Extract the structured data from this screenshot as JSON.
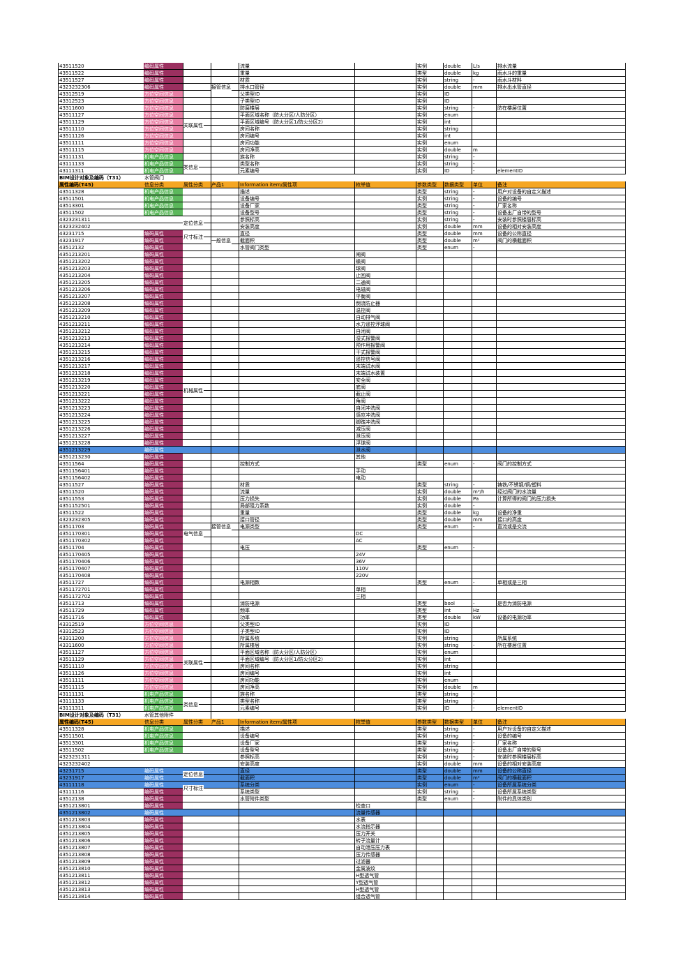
{
  "sections": [
    {
      "rows": [
        {
          "c0": "43511520",
          "t": "mag",
          "c4": "流量",
          "c6": "实例",
          "c7": "double",
          "c8": "L/s",
          "c9": "排水流量"
        },
        {
          "c0": "43511522",
          "t": "mag",
          "c4": "重量",
          "c6": "类型",
          "c7": "double",
          "c8": "kg",
          "c9": "雨水斗的重量"
        },
        {
          "c0": "43511527",
          "t": "mag",
          "c4": "材质",
          "c6": "实例",
          "c7": "string",
          "c8": "-",
          "c9": "雨水斗材料"
        },
        {
          "c0": "4323232306",
          "t": "mag",
          "c4": "排水口管径",
          "c6": "实例",
          "c7": "double",
          "c8": "mm",
          "c9": "排水出水管直径"
        },
        {
          "c0": "43312519",
          "t": "pink",
          "c4": "父类型ID",
          "c6": "实例",
          "c7": "ID",
          "c8": "",
          "c9": ""
        },
        {
          "c0": "43312523",
          "t": "pink",
          "c4": "子类型ID",
          "c6": "实例",
          "c7": "ID",
          "c8": "",
          "c9": ""
        },
        {
          "c0": "43311600",
          "t": "pink",
          "c4": "防腐楼层",
          "c6": "实例",
          "c7": "string",
          "c8": "-",
          "c9": "防在楼层位置"
        },
        {
          "c0": "43511127",
          "t": "pink",
          "c4": "平面区域名称（防火分区/人防分区）",
          "c6": "实例",
          "c7": "enum",
          "c8": "",
          "c9": ""
        },
        {
          "c0": "43511129",
          "t": "pink",
          "c4": "平面区域编号（防火分区1/防火分区2）",
          "c6": "实例",
          "c7": "int",
          "c8": "",
          "c9": ""
        },
        {
          "c0": "43511110",
          "t": "pink",
          "c4": "房间名称",
          "c6": "实例",
          "c7": "string",
          "c8": "",
          "c9": ""
        },
        {
          "c0": "43511126",
          "t": "pink",
          "c4": "房间编号",
          "c6": "实例",
          "c7": "int",
          "c8": "",
          "c9": ""
        },
        {
          "c0": "43511111",
          "t": "pink",
          "c4": "房间功能",
          "c6": "实例",
          "c7": "enum",
          "c8": "",
          "c9": ""
        },
        {
          "c0": "43511115",
          "t": "pink",
          "c4": "房间净高",
          "c6": "实例",
          "c7": "double",
          "c8": "m",
          "c9": ""
        },
        {
          "c0": "43111131",
          "t": "grn",
          "c4": "族名称",
          "c6": "实例",
          "c7": "string",
          "c8": "-",
          "c9": ""
        },
        {
          "c0": "43111133",
          "t": "grn",
          "c4": "类型名称",
          "c6": "实例",
          "c7": "string",
          "c8": "-",
          "c9": ""
        },
        {
          "c0": "43111311",
          "t": "grn",
          "c4": "元素编号",
          "c6": "实例",
          "c7": "ID",
          "c8": "-",
          "c9": "elementID"
        }
      ]
    },
    {
      "title": "BIM设计对象及编码（T31）",
      "subtitle": "水管阀门",
      "rows": [
        {
          "c0": "43511328",
          "t": "grn",
          "c4": "描述",
          "c6": "类型",
          "c7": "string",
          "c8": "-",
          "c9": "用户对设备的自定义描述"
        },
        {
          "c0": "43511501",
          "t": "grn",
          "c4": "设备编号",
          "c6": "实例",
          "c7": "string",
          "c8": "-",
          "c9": "设备的编号"
        },
        {
          "c0": "43513301",
          "t": "grn",
          "c4": "设备厂家",
          "c6": "类型",
          "c7": "string",
          "c8": "-",
          "c9": "厂家名称"
        },
        {
          "c0": "43511502",
          "t": "grn",
          "c4": "设备型号",
          "c6": "类型",
          "c7": "string",
          "c8": "-",
          "c9": "设备出厂自带的型号"
        },
        {
          "c0": "4323231311",
          "t": "",
          "c4": "参照标高",
          "c6": "实例",
          "c7": "string",
          "c8": "-",
          "c9": "安装时参照楼层标高"
        },
        {
          "c0": "4323232402",
          "t": "",
          "c4": "安装高度",
          "c6": "实例",
          "c7": "double",
          "c8": "mm",
          "c9": "设备的相对安装高度"
        },
        {
          "c0": "43231715",
          "t": "mag",
          "c4": "直径",
          "c6": "类型",
          "c7": "double",
          "c8": "mm",
          "c9": "设备的公称直径"
        },
        {
          "c0": "43231917",
          "t": "mag",
          "c4": "截面积",
          "c6": "类型",
          "c7": "double",
          "c8": "m²",
          "c9": "阀门的横截面积"
        },
        {
          "c0": "43512132",
          "t": "mag",
          "c4": "水管阀门类型",
          "c6": "类型",
          "c7": "enum",
          "c8": "-",
          "c9": ""
        },
        {
          "c0": "4351213201",
          "t": "mag",
          "c5": "闸阀"
        },
        {
          "c0": "4351213202",
          "t": "mag",
          "c5": "蝶阀"
        },
        {
          "c0": "4351213203",
          "t": "mag",
          "c5": "球阀"
        },
        {
          "c0": "4351213204",
          "t": "mag",
          "c5": "止回阀"
        },
        {
          "c0": "4351213205",
          "t": "mag",
          "c5": "二通阀"
        },
        {
          "c0": "4351213206",
          "t": "mag",
          "c5": "电磁阀"
        },
        {
          "c0": "4351213207",
          "t": "mag",
          "c5": "平衡阀"
        },
        {
          "c0": "4351213208",
          "t": "mag",
          "c5": "倒流防止器"
        },
        {
          "c0": "4351213209",
          "t": "mag",
          "c5": "温控阀"
        },
        {
          "c0": "4351213210",
          "t": "mag",
          "c5": "自动排气阀"
        },
        {
          "c0": "4351213211",
          "t": "mag",
          "c5": "水力遥控浮球阀"
        },
        {
          "c0": "4351213212",
          "t": "mag",
          "c5": "自闭阀"
        },
        {
          "c0": "4351213213",
          "t": "mag",
          "c5": "湿式报警阀"
        },
        {
          "c0": "4351213214",
          "t": "mag",
          "c5": "预作用报警阀"
        },
        {
          "c0": "4351213215",
          "t": "mag",
          "c5": "干式报警阀"
        },
        {
          "c0": "4351213216",
          "t": "mag",
          "c5": "遥控信号阀"
        },
        {
          "c0": "4351213217",
          "t": "mag",
          "c5": "末端试水阀"
        },
        {
          "c0": "4351213218",
          "t": "mag",
          "c5": "末端试水装置"
        },
        {
          "c0": "4351213219",
          "t": "mag",
          "c5": "安全阀"
        },
        {
          "c0": "4351213220",
          "t": "mag",
          "c5": "底阀"
        },
        {
          "c0": "4351213221",
          "t": "mag",
          "c5": "截止阀"
        },
        {
          "c0": "4351213222",
          "t": "mag",
          "c5": "角阀"
        },
        {
          "c0": "4351213223",
          "t": "mag",
          "c5": "自闭冲洗阀"
        },
        {
          "c0": "4351213224",
          "t": "mag",
          "c5": "感应冲洗阀"
        },
        {
          "c0": "4351213225",
          "t": "mag",
          "c5": "脚踏冲洗阀"
        },
        {
          "c0": "4351213226",
          "t": "mag",
          "c5": "减压阀"
        },
        {
          "c0": "4351213227",
          "t": "mag",
          "c5": "泄压阀"
        },
        {
          "c0": "4351213228",
          "t": "mag",
          "c5": "浮球阀"
        },
        {
          "c0": "4351213229",
          "t": "mag",
          "c5": "泄水阀",
          "hl": true
        },
        {
          "c0": "4351213230",
          "t": "mag",
          "c5": "其他"
        },
        {
          "c0": "43511564",
          "t": "mag",
          "c4": "控制方式",
          "c6": "类型",
          "c7": "enum",
          "c8": "-",
          "c9": "阀门的控制方式"
        },
        {
          "c0": "4351156401",
          "t": "mag",
          "c5": "手动"
        },
        {
          "c0": "4351156402",
          "t": "mag",
          "c5": "电动"
        },
        {
          "c0": "43511527",
          "t": "mag",
          "c4": "材质",
          "c6": "类型",
          "c7": "string",
          "c8": "-",
          "c9": "铸铁/不锈钢/铜/塑料"
        },
        {
          "c0": "43511520",
          "t": "mag",
          "c4": "流量",
          "c6": "实例",
          "c7": "double",
          "c8": "m³/h",
          "c9": "经过阀门的水流量"
        },
        {
          "c0": "43511553",
          "t": "mag",
          "c4": "压力损失",
          "c6": "实例",
          "c7": "double",
          "c8": "Pa",
          "c9": "计算所得的阀门的压力损失"
        },
        {
          "c0": "4351152501",
          "t": "mag",
          "c4": "局部阻力系数",
          "c6": "实例",
          "c7": "double",
          "c8": "-",
          "c9": ""
        },
        {
          "c0": "43511522",
          "t": "mag",
          "c4": "重量",
          "c6": "类型",
          "c7": "double",
          "c8": "kg",
          "c9": "设备的净重"
        },
        {
          "c0": "4323232305",
          "t": "mag",
          "c4": "接口管径",
          "c6": "类型",
          "c7": "double",
          "c8": "mm",
          "c9": "接口的高度"
        },
        {
          "c0": "43511703",
          "t": "mag",
          "c4": "电源类型",
          "c6": "类型",
          "c7": "enum",
          "c8": "-",
          "c9": "直流或是交流"
        },
        {
          "c0": "4351170301",
          "t": "mag",
          "c5": "DC"
        },
        {
          "c0": "4351170302",
          "t": "mag",
          "c5": "AC"
        },
        {
          "c0": "43511704",
          "t": "mag",
          "c4": "电压",
          "c6": "类型",
          "c7": "enum",
          "c8": "-",
          "c9": ""
        },
        {
          "c0": "4351170405",
          "t": "mag",
          "c5": "24V"
        },
        {
          "c0": "4351170406",
          "t": "mag",
          "c5": "36V"
        },
        {
          "c0": "4351170407",
          "t": "mag",
          "c5": "110V"
        },
        {
          "c0": "4351170408",
          "t": "mag",
          "c5": "220V"
        },
        {
          "c0": "43511727",
          "t": "mag",
          "c4": "电源相数",
          "c6": "类型",
          "c7": "enum",
          "c8": "-",
          "c9": "单相或是三相"
        },
        {
          "c0": "4351172701",
          "t": "mag",
          "c5": "单相"
        },
        {
          "c0": "4351172702",
          "t": "mag",
          "c5": "三相"
        },
        {
          "c0": "43511713",
          "t": "mag",
          "c4": "消防电源",
          "c6": "类型",
          "c7": "bool",
          "c8": "-",
          "c9": "是否为消防电源"
        },
        {
          "c0": "43511729",
          "t": "mag",
          "c4": "频率",
          "c6": "类型",
          "c7": "int",
          "c8": "Hz",
          "c9": ""
        },
        {
          "c0": "43511716",
          "t": "mag",
          "c4": "功率",
          "c6": "类型",
          "c7": "double",
          "c8": "kW",
          "c9": "设备的电源功率"
        },
        {
          "c0": "43312519",
          "t": "pink",
          "c4": "父类型ID",
          "c6": "实例",
          "c7": "ID",
          "c8": "",
          "c9": ""
        },
        {
          "c0": "43312523",
          "t": "pink",
          "c4": "子类型ID",
          "c6": "实例",
          "c7": "ID",
          "c8": "",
          "c9": ""
        },
        {
          "c0": "43311200",
          "t": "pink",
          "c4": "所属系统",
          "c6": "实例",
          "c7": "string",
          "c8": "",
          "c9": "所属系统"
        },
        {
          "c0": "43311600",
          "t": "pink",
          "c4": "所属楼层",
          "c6": "实例",
          "c7": "string",
          "c8": "-",
          "c9": "所在楼层位置"
        },
        {
          "c0": "43511127",
          "t": "pink",
          "c4": "平面区域名称（防火分区/人防分区）",
          "c6": "实例",
          "c7": "enum",
          "c8": "",
          "c9": ""
        },
        {
          "c0": "43511129",
          "t": "pink",
          "c4": "平面区域编号（防火分区1/防火分区2）",
          "c6": "实例",
          "c7": "int",
          "c8": "",
          "c9": ""
        },
        {
          "c0": "43511110",
          "t": "pink",
          "c4": "房间名称",
          "c6": "实例",
          "c7": "string",
          "c8": "",
          "c9": ""
        },
        {
          "c0": "43511126",
          "t": "pink",
          "c4": "房间编号",
          "c6": "实例",
          "c7": "int",
          "c8": "",
          "c9": ""
        },
        {
          "c0": "43511111",
          "t": "pink",
          "c4": "房间功能",
          "c6": "实例",
          "c7": "enum",
          "c8": "",
          "c9": ""
        },
        {
          "c0": "43511115",
          "t": "pink",
          "c4": "房间净高",
          "c6": "实例",
          "c7": "double",
          "c8": "m",
          "c9": ""
        },
        {
          "c0": "43111131",
          "t": "grn",
          "c4": "族名称",
          "c6": "类型",
          "c7": "string",
          "c8": "-",
          "c9": ""
        },
        {
          "c0": "43111133",
          "t": "grn",
          "c4": "类型名称",
          "c6": "类型",
          "c7": "string",
          "c8": "-",
          "c9": ""
        },
        {
          "c0": "43111311",
          "t": "grn",
          "c4": "元素编号",
          "c6": "实例",
          "c7": "ID",
          "c8": "-",
          "c9": "elementID"
        }
      ]
    },
    {
      "title": "BIM设计对象及编码（T31）",
      "subtitle": "水管其他附件",
      "rows": [
        {
          "c0": "43511328",
          "t": "grn",
          "c4": "描述",
          "c6": "类型",
          "c7": "string",
          "c8": "-",
          "c9": "用户对设备的自定义描述"
        },
        {
          "c0": "43511501",
          "t": "grn",
          "c4": "设备编号",
          "c6": "实例",
          "c7": "string",
          "c8": "-",
          "c9": "设备的编号"
        },
        {
          "c0": "43513301",
          "t": "grn",
          "c4": "设备厂家",
          "c6": "类型",
          "c7": "string",
          "c8": "-",
          "c9": "厂家名称"
        },
        {
          "c0": "43511502",
          "t": "grn",
          "c4": "设备型号",
          "c6": "类型",
          "c7": "string",
          "c8": "-",
          "c9": "设备出厂自带的型号"
        },
        {
          "c0": "4323231311",
          "t": "",
          "c4": "参照标高",
          "c6": "实例",
          "c7": "string",
          "c8": "-",
          "c9": "安装时参照楼层标高"
        },
        {
          "c0": "4323232402",
          "t": "",
          "c4": "安装高度",
          "c6": "实例",
          "c7": "double",
          "c8": "mm",
          "c9": "设备的相对安装高度"
        },
        {
          "c0": "43231715",
          "t": "mag",
          "c4": "直径",
          "c6": "类型",
          "c7": "double",
          "c8": "mm",
          "c9": "设备的公称直径",
          "hl": true
        },
        {
          "c0": "43231917",
          "t": "mag",
          "c4": "截面积",
          "c6": "类型",
          "c7": "double",
          "c8": "m²",
          "c9": "阀门的横截面积",
          "hl": true
        },
        {
          "c0": "43111118",
          "t": "mag",
          "c4": "系统分类",
          "c6": "实例",
          "c7": "enum",
          "c8": "-",
          "c9": "设备所属系统分类",
          "hl": true
        },
        {
          "c0": "43111116",
          "t": "mag",
          "c4": "系统类型",
          "c6": "实例",
          "c7": "string",
          "c8": "-",
          "c9": "设备所属系统类型"
        },
        {
          "c0": "43512138",
          "t": "mag",
          "c4": "水管附件类型",
          "c6": "类型",
          "c7": "enum",
          "c8": "-",
          "c9": "附件的具体类别"
        },
        {
          "c0": "4351213801",
          "t": "mag",
          "c5": "检查口"
        },
        {
          "c0": "4351213802",
          "t": "mag",
          "c5": "流量传感器",
          "hl": true
        },
        {
          "c0": "4351213803",
          "t": "mag",
          "c5": "水表"
        },
        {
          "c0": "4351213804",
          "t": "mag",
          "c5": "水流指示器"
        },
        {
          "c0": "4351213805",
          "t": "mag",
          "c5": "压力开关"
        },
        {
          "c0": "4351213806",
          "t": "mag",
          "c5": "转子流量计"
        },
        {
          "c0": "4351213807",
          "t": "mag",
          "c5": "自动泄压压力表"
        },
        {
          "c0": "4351213808",
          "t": "mag",
          "c5": "压力传感器"
        },
        {
          "c0": "4351213809",
          "t": "mag",
          "c5": "过滤器"
        },
        {
          "c0": "4351213810",
          "t": "mag",
          "c5": "金属波纹"
        },
        {
          "c0": "4351213811",
          "t": "mag",
          "c5": "H型透气管"
        },
        {
          "c0": "4351213812",
          "t": "mag",
          "c5": "Y型透气管"
        },
        {
          "c0": "4351213813",
          "t": "mag",
          "c5": "H型透气管"
        },
        {
          "c0": "4351213814",
          "t": "mag",
          "c5": "组合透气管"
        }
      ]
    }
  ],
  "header": {
    "c0": "属性编码(T45)",
    "c1": "信息分类",
    "c2": "属性分类",
    "c3": "产品1",
    "c4": "Information item/属性项",
    "c5": "枚举值",
    "c6": "参数类型",
    "c7": "数据类型",
    "c8": "单位",
    "c9": "备注"
  },
  "category_labels": {
    "mag": "编码属性",
    "pink": "方位空间信息",
    "grn": "机电产品信息"
  },
  "group_labels": {
    "s0_pipe": "接管信息",
    "s0_assoc": "关联属性",
    "s0_class": "类信息",
    "s1_position": "定位信息",
    "s1_size": "尺寸标注",
    "s1_general": "一般信息",
    "s1_mech": "机械属性",
    "s1_pipe": "接管信息",
    "s1_elec": "电气信息",
    "s1_assoc": "关联属性",
    "s1_class": "类信息",
    "s2_position": "定位信息",
    "s2_size": "尺寸标注"
  },
  "colors": {
    "header_orange": "#f5a623",
    "highlight_blue": "#4d8ddd",
    "code_magenta": "#9b3060",
    "spatial_pink": "#e87fa4",
    "product_green": "#5cb85c"
  }
}
